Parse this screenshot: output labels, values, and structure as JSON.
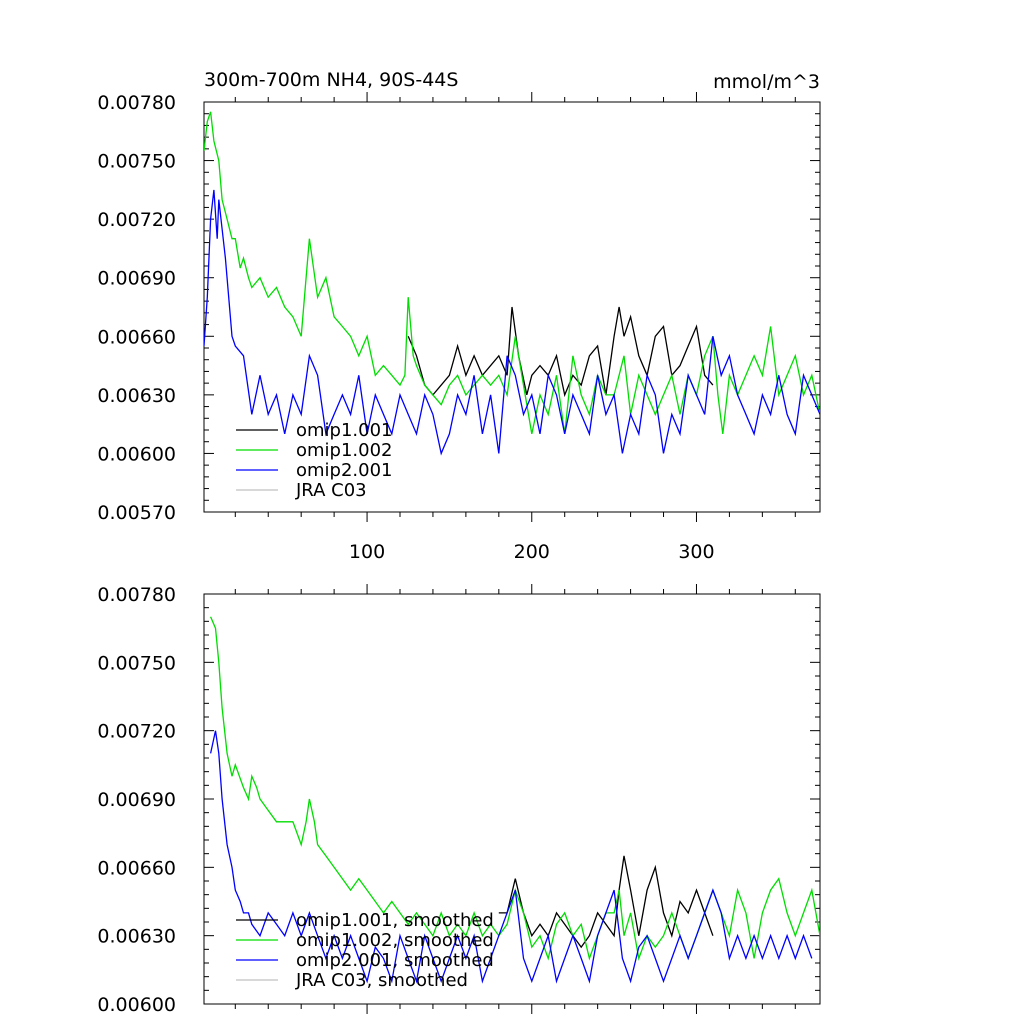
{
  "chart_data": [
    {
      "type": "line",
      "title": "300m-700m NH4, 90S-44S",
      "units": "mmol/m^3",
      "xlim": [
        1,
        375
      ],
      "ylim": [
        0.0057,
        0.0078
      ],
      "x_ticks": [
        100,
        200,
        300
      ],
      "x_tick_labels": [
        "100",
        "200",
        "300"
      ],
      "y_ticks": [
        0.0057,
        0.006,
        0.0063,
        0.0066,
        0.0069,
        0.0072,
        0.0075,
        0.0078
      ],
      "y_tick_labels": [
        "0.00570",
        "0.00600",
        "0.00630",
        "0.00660",
        "0.00690",
        "0.00720",
        "0.00750",
        "0.00780"
      ],
      "legend": [
        "omip1.001",
        "omip1.002",
        "omip2.001",
        "JRA C03"
      ],
      "series": [
        {
          "name": "omip1.001",
          "color": "#000000",
          "x": [
            125,
            130,
            135,
            140,
            145,
            150,
            155,
            160,
            165,
            170,
            175,
            180,
            185,
            188,
            192,
            197,
            200,
            205,
            210,
            215,
            220,
            225,
            230,
            235,
            240,
            245,
            250,
            253,
            256,
            260,
            265,
            270,
            275,
            280,
            285,
            290,
            295,
            300,
            305,
            310
          ],
          "values": [
            0.0066,
            0.0065,
            0.00635,
            0.0063,
            0.00635,
            0.0064,
            0.00655,
            0.0064,
            0.0065,
            0.0064,
            0.00645,
            0.0065,
            0.0064,
            0.00675,
            0.0065,
            0.0063,
            0.0064,
            0.00645,
            0.0064,
            0.0065,
            0.0063,
            0.0064,
            0.00635,
            0.0065,
            0.00655,
            0.0063,
            0.0066,
            0.00675,
            0.0066,
            0.0067,
            0.0065,
            0.0064,
            0.0066,
            0.00665,
            0.0064,
            0.00645,
            0.00655,
            0.00665,
            0.0064,
            0.00635
          ]
        },
        {
          "name": "omip1.002",
          "color": "#00dd00",
          "x": [
            1,
            3,
            5,
            7,
            10,
            12,
            15,
            18,
            20,
            23,
            25,
            28,
            30,
            35,
            40,
            45,
            50,
            55,
            60,
            63,
            65,
            70,
            75,
            80,
            85,
            90,
            95,
            100,
            105,
            110,
            115,
            120,
            123,
            125,
            128,
            130,
            135,
            140,
            145,
            150,
            155,
            160,
            165,
            170,
            175,
            180,
            185,
            190,
            195,
            200,
            205,
            210,
            215,
            220,
            225,
            230,
            235,
            240,
            245,
            250,
            253,
            256,
            260,
            265,
            270,
            275,
            280,
            285,
            290,
            295,
            300,
            305,
            310,
            313,
            316,
            320,
            325,
            330,
            335,
            340,
            345,
            350,
            355,
            360,
            365,
            370,
            375
          ],
          "values": [
            0.00755,
            0.0077,
            0.00775,
            0.0076,
            0.0075,
            0.0073,
            0.0072,
            0.0071,
            0.0071,
            0.00695,
            0.007,
            0.0069,
            0.00685,
            0.0069,
            0.0068,
            0.00685,
            0.00675,
            0.0067,
            0.0066,
            0.0069,
            0.0071,
            0.0068,
            0.0069,
            0.0067,
            0.00665,
            0.0066,
            0.0065,
            0.0066,
            0.0064,
            0.00645,
            0.0064,
            0.00635,
            0.0064,
            0.0068,
            0.0065,
            0.00645,
            0.00635,
            0.0063,
            0.00625,
            0.00635,
            0.0064,
            0.0063,
            0.00635,
            0.0064,
            0.00635,
            0.0064,
            0.0063,
            0.0066,
            0.00635,
            0.0061,
            0.0063,
            0.0062,
            0.0064,
            0.0061,
            0.0065,
            0.0063,
            0.0062,
            0.0064,
            0.0063,
            0.0063,
            0.0064,
            0.0065,
            0.0062,
            0.0064,
            0.0063,
            0.0062,
            0.0063,
            0.0064,
            0.0062,
            0.0064,
            0.0063,
            0.0065,
            0.0066,
            0.0063,
            0.0061,
            0.0064,
            0.0063,
            0.0064,
            0.0065,
            0.0064,
            0.00665,
            0.0063,
            0.0064,
            0.0065,
            0.0063,
            0.0064,
            0.0062
          ]
        },
        {
          "name": "omip2.001",
          "color": "#0000ff",
          "x": [
            1,
            3,
            5,
            7,
            9,
            10,
            12,
            14,
            16,
            18,
            20,
            25,
            30,
            35,
            40,
            45,
            50,
            55,
            60,
            65,
            70,
            75,
            80,
            85,
            90,
            95,
            100,
            105,
            110,
            115,
            120,
            125,
            130,
            135,
            140,
            145,
            150,
            155,
            160,
            165,
            170,
            175,
            180,
            185,
            190,
            195,
            200,
            205,
            210,
            215,
            220,
            225,
            230,
            235,
            240,
            245,
            250,
            255,
            260,
            265,
            270,
            275,
            280,
            285,
            290,
            295,
            300,
            305,
            310,
            315,
            320,
            325,
            330,
            335,
            340,
            345,
            350,
            355,
            360,
            365,
            370,
            375
          ],
          "values": [
            0.00655,
            0.0068,
            0.0072,
            0.00735,
            0.0071,
            0.0073,
            0.00715,
            0.007,
            0.0068,
            0.0066,
            0.00655,
            0.0065,
            0.0062,
            0.0064,
            0.0062,
            0.0063,
            0.0061,
            0.0063,
            0.0062,
            0.0065,
            0.0064,
            0.0061,
            0.0062,
            0.0063,
            0.0062,
            0.0064,
            0.0061,
            0.0063,
            0.0062,
            0.0061,
            0.0063,
            0.0062,
            0.0061,
            0.0063,
            0.0062,
            0.006,
            0.0061,
            0.0063,
            0.0062,
            0.0064,
            0.0061,
            0.0063,
            0.006,
            0.0065,
            0.0064,
            0.0062,
            0.0063,
            0.0061,
            0.0064,
            0.0063,
            0.0061,
            0.0063,
            0.0062,
            0.0061,
            0.0064,
            0.0062,
            0.0063,
            0.006,
            0.0062,
            0.0061,
            0.0064,
            0.0063,
            0.006,
            0.0062,
            0.0061,
            0.0064,
            0.0063,
            0.0062,
            0.0066,
            0.0064,
            0.0065,
            0.0063,
            0.0062,
            0.0061,
            0.0063,
            0.0062,
            0.0064,
            0.0062,
            0.0061,
            0.0064,
            0.0063,
            0.0062
          ]
        },
        {
          "name": "JRA C03",
          "color": "#c0c0c0",
          "x": [],
          "values": []
        }
      ]
    },
    {
      "type": "line",
      "xlim": [
        1,
        375
      ],
      "ylim": [
        0.006,
        0.0078
      ],
      "x_ticks": [
        100,
        200,
        300
      ],
      "y_ticks": [
        0.006,
        0.0063,
        0.0066,
        0.0069,
        0.0072,
        0.0075,
        0.0078
      ],
      "y_tick_labels": [
        "0.00600",
        "0.00630",
        "0.00660",
        "0.00690",
        "0.00720",
        "0.00750",
        "0.00780"
      ],
      "legend": [
        "omip1.001, smoothed",
        "omip1.002, smoothed",
        "omip2.001, smoothed",
        "JRA C03, smoothed"
      ],
      "series": [
        {
          "name": "omip1.001, smoothed",
          "color": "#000000",
          "x": [
            180,
            185,
            190,
            195,
            200,
            205,
            210,
            215,
            220,
            225,
            230,
            235,
            240,
            245,
            250,
            253,
            256,
            260,
            265,
            270,
            275,
            280,
            285,
            290,
            295,
            300,
            305,
            310
          ],
          "values": [
            0.0064,
            0.0064,
            0.00655,
            0.0064,
            0.0063,
            0.00635,
            0.0063,
            0.0064,
            0.00635,
            0.0063,
            0.00625,
            0.0063,
            0.0064,
            0.00635,
            0.0063,
            0.0065,
            0.00665,
            0.0065,
            0.0063,
            0.0065,
            0.0066,
            0.0064,
            0.0063,
            0.00645,
            0.0064,
            0.0065,
            0.0064,
            0.0063
          ]
        },
        {
          "name": "omip1.002, smoothed",
          "color": "#00dd00",
          "x": [
            5,
            8,
            10,
            12,
            15,
            18,
            20,
            25,
            28,
            30,
            33,
            35,
            40,
            45,
            50,
            55,
            60,
            63,
            65,
            68,
            70,
            75,
            80,
            85,
            90,
            95,
            100,
            105,
            110,
            115,
            120,
            125,
            130,
            135,
            140,
            145,
            150,
            155,
            160,
            165,
            170,
            175,
            180,
            185,
            190,
            195,
            200,
            205,
            210,
            215,
            220,
            225,
            230,
            235,
            240,
            245,
            250,
            253,
            256,
            260,
            265,
            270,
            275,
            280,
            285,
            290,
            295,
            300,
            305,
            310,
            315,
            320,
            325,
            330,
            335,
            340,
            345,
            350,
            355,
            360,
            365,
            370,
            375
          ],
          "values": [
            0.0077,
            0.00765,
            0.0075,
            0.0073,
            0.0071,
            0.007,
            0.00705,
            0.00695,
            0.0069,
            0.007,
            0.00695,
            0.0069,
            0.00685,
            0.0068,
            0.0068,
            0.0068,
            0.0067,
            0.0068,
            0.0069,
            0.0068,
            0.0067,
            0.00665,
            0.0066,
            0.00655,
            0.0065,
            0.00655,
            0.0065,
            0.00645,
            0.0064,
            0.00645,
            0.0064,
            0.00635,
            0.0064,
            0.00635,
            0.0063,
            0.0064,
            0.0063,
            0.00635,
            0.0063,
            0.0064,
            0.0063,
            0.00635,
            0.0063,
            0.00635,
            0.0065,
            0.0064,
            0.00625,
            0.0063,
            0.0062,
            0.00635,
            0.0064,
            0.0063,
            0.00635,
            0.0062,
            0.0063,
            0.0064,
            0.0064,
            0.0065,
            0.0063,
            0.0064,
            0.0062,
            0.0063,
            0.00625,
            0.0063,
            0.0064,
            0.0063,
            0.0062,
            0.0063,
            0.0064,
            0.0065,
            0.0064,
            0.0063,
            0.0065,
            0.0064,
            0.0062,
            0.0064,
            0.0065,
            0.00655,
            0.0064,
            0.0063,
            0.0064,
            0.0065,
            0.0063
          ]
        },
        {
          "name": "omip2.001, smoothed",
          "color": "#0000ff",
          "x": [
            5,
            8,
            10,
            12,
            15,
            18,
            20,
            23,
            25,
            28,
            30,
            35,
            40,
            45,
            50,
            55,
            60,
            65,
            70,
            75,
            80,
            85,
            90,
            95,
            100,
            105,
            110,
            115,
            120,
            125,
            130,
            135,
            140,
            145,
            150,
            155,
            160,
            165,
            170,
            175,
            180,
            185,
            190,
            195,
            200,
            205,
            210,
            215,
            220,
            225,
            230,
            235,
            240,
            245,
            250,
            255,
            260,
            265,
            270,
            275,
            280,
            285,
            290,
            295,
            300,
            305,
            310,
            315,
            320,
            325,
            330,
            335,
            340,
            345,
            350,
            355,
            360,
            365,
            370
          ],
          "values": [
            0.0071,
            0.0072,
            0.0071,
            0.0069,
            0.0067,
            0.0066,
            0.0065,
            0.00645,
            0.0064,
            0.0064,
            0.00635,
            0.0063,
            0.0064,
            0.00635,
            0.0063,
            0.0064,
            0.0063,
            0.0064,
            0.0063,
            0.0062,
            0.0063,
            0.0062,
            0.0063,
            0.0062,
            0.0061,
            0.00625,
            0.0062,
            0.0061,
            0.0063,
            0.0062,
            0.0061,
            0.0063,
            0.0062,
            0.0061,
            0.0062,
            0.0063,
            0.0062,
            0.0063,
            0.0061,
            0.0062,
            0.0063,
            0.0064,
            0.0065,
            0.0062,
            0.0061,
            0.0062,
            0.0063,
            0.0061,
            0.0062,
            0.0063,
            0.0062,
            0.0061,
            0.0063,
            0.0064,
            0.0065,
            0.0062,
            0.0061,
            0.00625,
            0.0063,
            0.0062,
            0.0061,
            0.0062,
            0.0063,
            0.0062,
            0.0063,
            0.0064,
            0.0065,
            0.0064,
            0.0062,
            0.0063,
            0.0062,
            0.0063,
            0.0062,
            0.0063,
            0.0062,
            0.0063,
            0.0062,
            0.0063,
            0.0062
          ]
        },
        {
          "name": "JRA C03, smoothed",
          "color": "#c0c0c0",
          "x": [],
          "values": []
        }
      ]
    }
  ]
}
